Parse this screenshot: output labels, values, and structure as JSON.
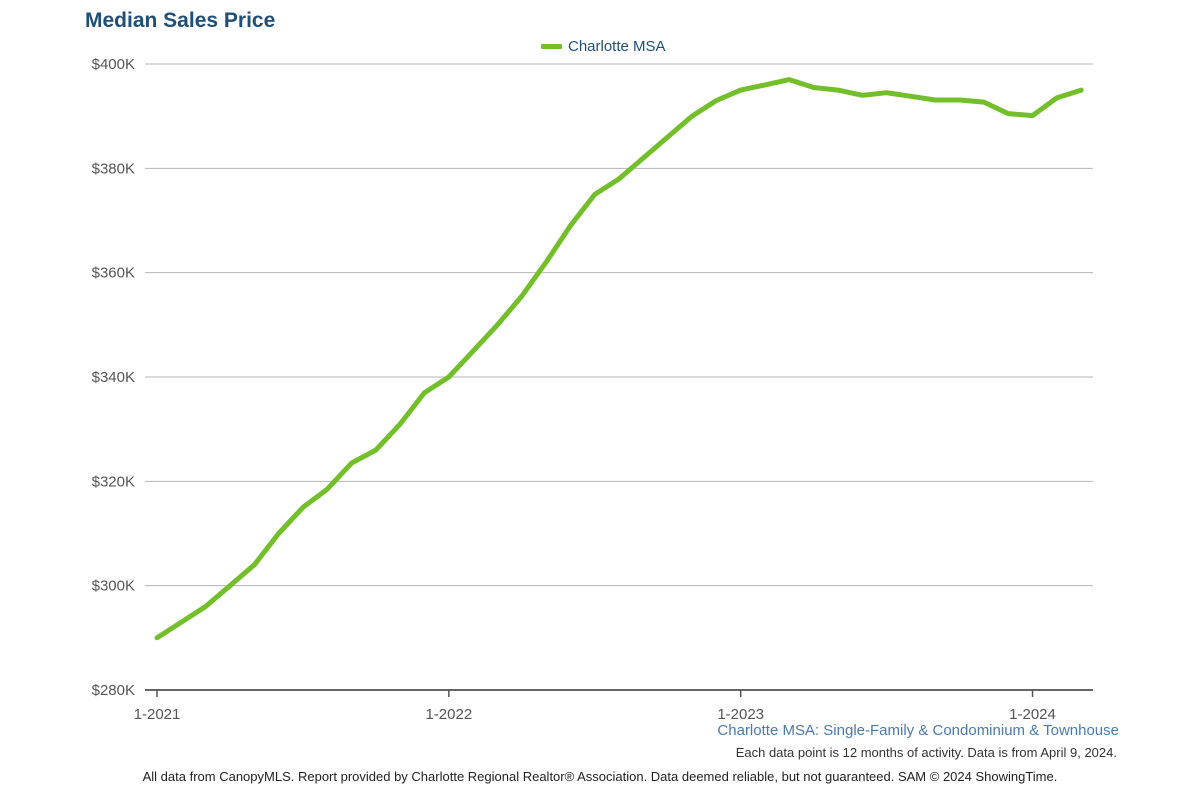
{
  "chart_data": {
    "type": "line",
    "title": "Median Sales Price",
    "legend_position": "top-center",
    "grid": true,
    "ylim": [
      280,
      400
    ],
    "y_ticks": [
      {
        "value": 400,
        "label": "$400K"
      },
      {
        "value": 380,
        "label": "$380K"
      },
      {
        "value": 360,
        "label": "$360K"
      },
      {
        "value": 340,
        "label": "$340K"
      },
      {
        "value": 320,
        "label": "$320K"
      },
      {
        "value": 300,
        "label": "$300K"
      },
      {
        "value": 280,
        "label": "$280K"
      }
    ],
    "x_ticks": [
      "1-2021",
      "1-2022",
      "1-2023",
      "1-2024"
    ],
    "x": [
      "1-2021",
      "2-2021",
      "3-2021",
      "4-2021",
      "5-2021",
      "6-2021",
      "7-2021",
      "8-2021",
      "9-2021",
      "10-2021",
      "11-2021",
      "12-2021",
      "1-2022",
      "2-2022",
      "3-2022",
      "4-2022",
      "5-2022",
      "6-2022",
      "7-2022",
      "8-2022",
      "9-2022",
      "10-2022",
      "11-2022",
      "12-2022",
      "1-2023",
      "2-2023",
      "3-2023",
      "4-2023",
      "5-2023",
      "6-2023",
      "7-2023",
      "8-2023",
      "9-2023",
      "10-2023",
      "11-2023",
      "12-2023",
      "1-2024",
      "2-2024",
      "3-2024"
    ],
    "series": [
      {
        "name": "Charlotte MSA",
        "color": "#72bf2a",
        "values": [
          290,
          293,
          296,
          300,
          304,
          310,
          315,
          318.5,
          323.5,
          326,
          331,
          337,
          340,
          345,
          350,
          355.5,
          362,
          369,
          375,
          378,
          382,
          386,
          390,
          393,
          395,
          396,
          397,
          395.5,
          395,
          394,
          394.5,
          393.8,
          393.1,
          393.1,
          392.7,
          390.5,
          390.1,
          393.5,
          395
        ]
      }
    ]
  },
  "subtitle": "Charlotte MSA: Single-Family & Condominium & Townhouse",
  "note": "Each data point is 12 months of activity. Data is from April 9, 2024.",
  "footer": "All data from CanopyMLS. Report provided by Charlotte Regional Realtor® Association. Data deemed reliable, but not guaranteed. SAM © 2024 ShowingTime."
}
